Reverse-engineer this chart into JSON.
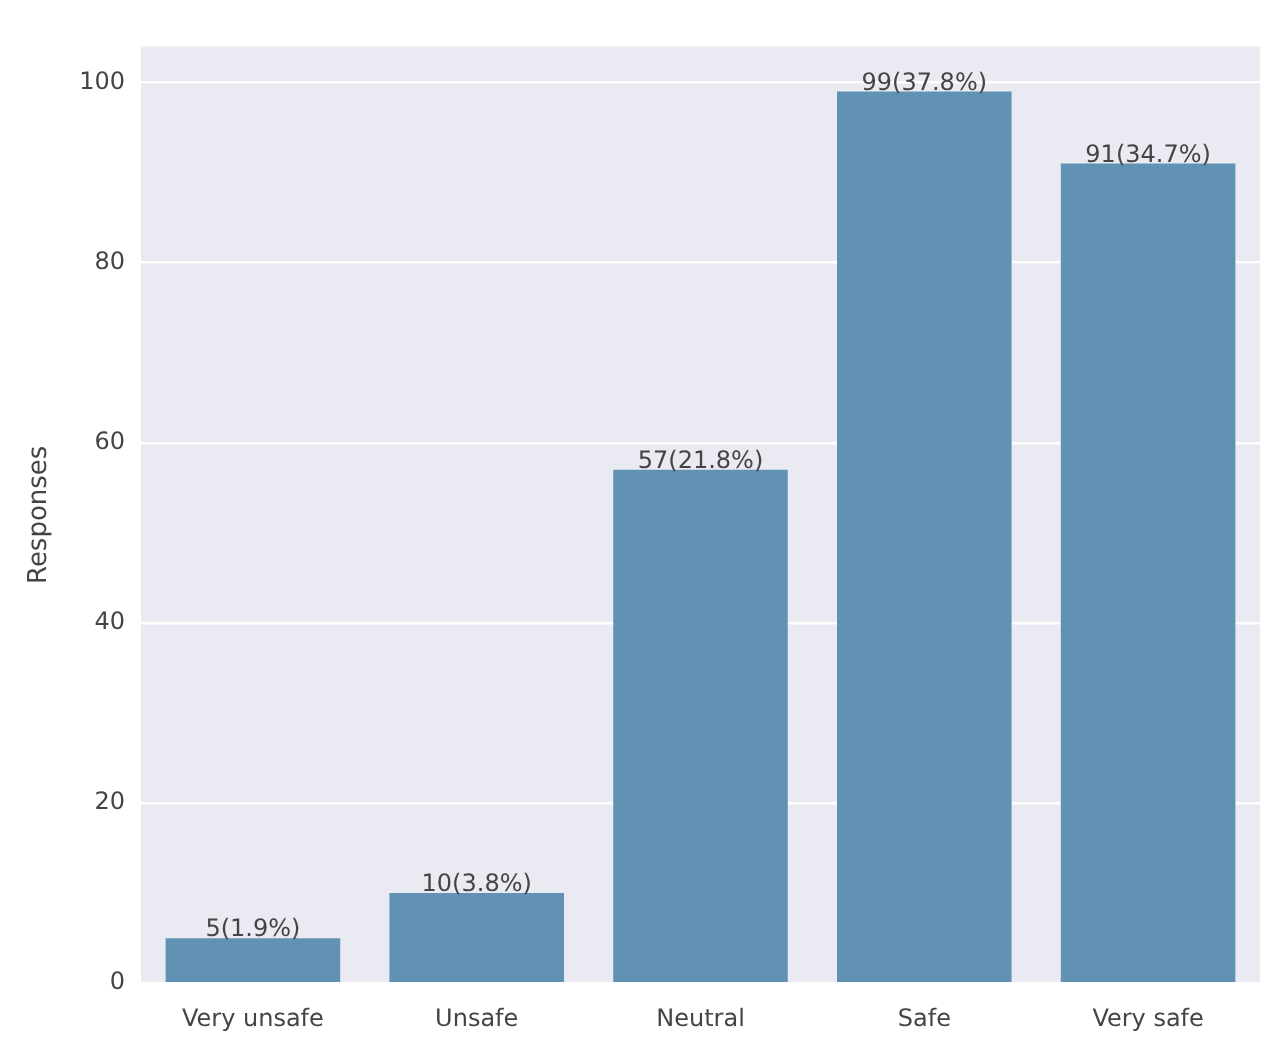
{
  "chart_data": {
    "type": "bar",
    "ylabel": "Responses",
    "categories": [
      "Very unsafe",
      "Unsafe",
      "Neutral",
      "Safe",
      "Very safe"
    ],
    "values": [
      5,
      10,
      57,
      99,
      91
    ],
    "value_labels": [
      "5(1.9%)",
      "10(3.8%)",
      "57(21.8%)",
      "99(37.8%)",
      "91(34.7%)"
    ],
    "color": "#6192b4",
    "ylim": [
      0,
      104
    ],
    "yticks": [
      0,
      20,
      40,
      60,
      80,
      100
    ],
    "grid": "y"
  }
}
